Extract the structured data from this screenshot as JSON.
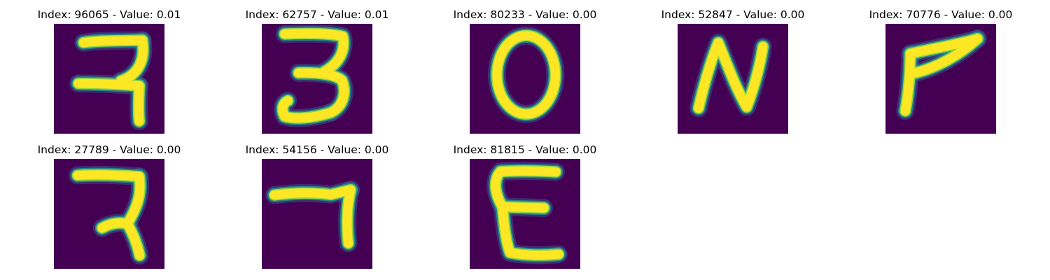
{
  "colors": {
    "background": "#440154",
    "stroke_core": "#fde725",
    "stroke_mid": "#90d743",
    "stroke_edge": "#21918c",
    "stroke_halo": "#3b528b"
  },
  "panels": [
    {
      "index": "96065",
      "value": "0.01",
      "title": "Index: 96065 - Value: 0.01",
      "glyph": "devanagari-ra"
    },
    {
      "index": "62757",
      "value": "0.01",
      "title": "Index: 62757 - Value: 0.01",
      "glyph": "digit-3"
    },
    {
      "index": "80233",
      "value": "0.00",
      "title": "Index: 80233 - Value: 0.00",
      "glyph": "digit-0"
    },
    {
      "index": "52847",
      "value": "0.00",
      "title": "Index: 52847 - Value: 0.00",
      "glyph": "letter-n"
    },
    {
      "index": "70776",
      "value": "0.00",
      "title": "Index: 70776 - Value: 0.00",
      "glyph": "hook-7"
    },
    {
      "index": "27789",
      "value": "0.00",
      "title": "Index: 27789 - Value: 0.00",
      "glyph": "devanagari-ra"
    },
    {
      "index": "54156",
      "value": "0.00",
      "title": "Index: 54156 - Value: 0.00",
      "glyph": "digit-7"
    },
    {
      "index": "81815",
      "value": "0.00",
      "title": "Index: 81815 - Value: 0.00",
      "glyph": "letter-e"
    }
  ]
}
